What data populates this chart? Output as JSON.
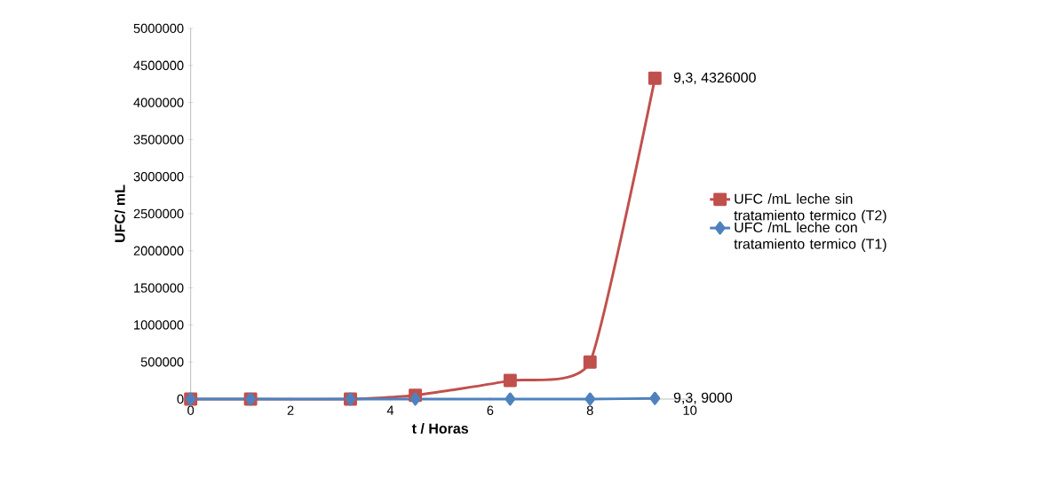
{
  "chart_data": {
    "type": "line",
    "xlabel": "t / Horas",
    "ylabel": "UFC/ mL",
    "x": [
      0,
      1.2,
      3.2,
      4.5,
      6.4,
      8.0,
      9.3
    ],
    "series": [
      {
        "name": "UFC /mL leche sin tratamiento termico (T2)",
        "color": "#c0504d",
        "marker": "square",
        "values": [
          0,
          0,
          0,
          50000,
          250000,
          500000,
          4326000
        ]
      },
      {
        "name": "UFC /mL leche con tratamiento termico (T1)",
        "color": "#4f81bd",
        "marker": "diamond",
        "values": [
          0,
          0,
          0,
          0,
          0,
          0,
          9000
        ]
      }
    ],
    "xlim": [
      0,
      10
    ],
    "xticks": [
      0,
      2,
      4,
      6,
      8,
      10
    ],
    "ylim": [
      0,
      5000000
    ],
    "yticks": [
      0,
      500000,
      1000000,
      1500000,
      2000000,
      2500000,
      3000000,
      3500000,
      4000000,
      4500000,
      5000000
    ],
    "annotations": [
      {
        "text": "9,3, 4326000",
        "x": 9.3,
        "y": 4326000
      },
      {
        "text": "9,3, 9000",
        "x": 9.3,
        "y": 9000
      }
    ],
    "legend": "right",
    "grid": false
  }
}
